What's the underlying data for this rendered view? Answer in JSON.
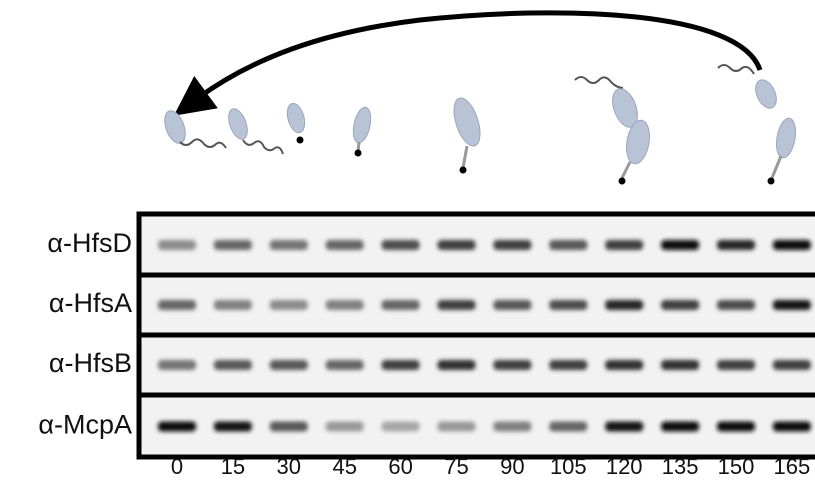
{
  "row_labels": [
    "α-HfsD",
    "α-HfsA",
    "α-HfsB",
    "α-McpA"
  ],
  "time_points": [
    0,
    15,
    30,
    45,
    60,
    75,
    90,
    105,
    120,
    135,
    150,
    165
  ]
}
